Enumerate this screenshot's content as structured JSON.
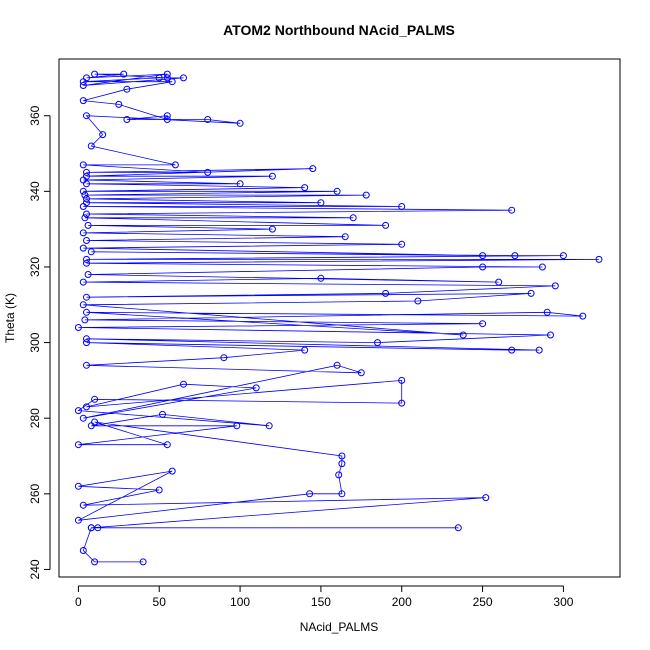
{
  "chart_data": {
    "type": "line",
    "title": "ATOM2 Northbound NAcid_PALMS",
    "xlabel": "NAcid_PALMS",
    "ylabel": "Theta (K)",
    "xlim": [
      -12,
      335
    ],
    "ylim": [
      238,
      375
    ],
    "xticks": [
      0,
      50,
      100,
      150,
      200,
      250,
      300
    ],
    "yticks": [
      240,
      260,
      280,
      300,
      320,
      340,
      360
    ],
    "grid": false,
    "legend": "none",
    "series_color": "#0000ff",
    "marker": "open-circle",
    "series": [
      {
        "values": [
          [
            40,
            242
          ],
          [
            10,
            242
          ],
          [
            3,
            245
          ],
          [
            8,
            251
          ],
          [
            12,
            251
          ],
          [
            235,
            251
          ],
          [
            8,
            251
          ],
          [
            252,
            259
          ],
          [
            3,
            257
          ],
          [
            50,
            261
          ],
          [
            0,
            262
          ],
          [
            58,
            266
          ],
          [
            0,
            253
          ],
          [
            143,
            260
          ],
          [
            163,
            260
          ],
          [
            161,
            265
          ],
          [
            163,
            268
          ],
          [
            163,
            270
          ],
          [
            10,
            279
          ],
          [
            55,
            273
          ],
          [
            0,
            273
          ],
          [
            98,
            278
          ],
          [
            8,
            278
          ],
          [
            52,
            281
          ],
          [
            118,
            278
          ],
          [
            0,
            282
          ],
          [
            10,
            285
          ],
          [
            200,
            284
          ],
          [
            200,
            290
          ],
          [
            5,
            283
          ],
          [
            65,
            289
          ],
          [
            110,
            288
          ],
          [
            3,
            280
          ],
          [
            160,
            294
          ],
          [
            175,
            292
          ],
          [
            5,
            294
          ],
          [
            90,
            296
          ],
          [
            140,
            298
          ],
          [
            5,
            300
          ],
          [
            268,
            298
          ],
          [
            285,
            298
          ],
          [
            5,
            301
          ],
          [
            185,
            300
          ],
          [
            292,
            302
          ],
          [
            0,
            304
          ],
          [
            250,
            305
          ],
          [
            4,
            306
          ],
          [
            290,
            308
          ],
          [
            312,
            307
          ],
          [
            5,
            308
          ],
          [
            238,
            302
          ],
          [
            3,
            310
          ],
          [
            210,
            311
          ],
          [
            280,
            313
          ],
          [
            5,
            312
          ],
          [
            190,
            313
          ],
          [
            295,
            315
          ],
          [
            3,
            316
          ],
          [
            150,
            317
          ],
          [
            260,
            316
          ],
          [
            6,
            318
          ],
          [
            250,
            320
          ],
          [
            287,
            320
          ],
          [
            5,
            321
          ],
          [
            322,
            322
          ],
          [
            5,
            322
          ],
          [
            300,
            323
          ],
          [
            270,
            323
          ],
          [
            8,
            324
          ],
          [
            250,
            323
          ],
          [
            3,
            325
          ],
          [
            200,
            326
          ],
          [
            5,
            327
          ],
          [
            165,
            328
          ],
          [
            3,
            329
          ],
          [
            120,
            330
          ],
          [
            6,
            331
          ],
          [
            190,
            331
          ],
          [
            4,
            333
          ],
          [
            170,
            333
          ],
          [
            5,
            334
          ],
          [
            268,
            335
          ],
          [
            3,
            336
          ],
          [
            200,
            336
          ],
          [
            5,
            337
          ],
          [
            150,
            337
          ],
          [
            5,
            338
          ],
          [
            178,
            339
          ],
          [
            4,
            339
          ],
          [
            160,
            340
          ],
          [
            3,
            340
          ],
          [
            140,
            341
          ],
          [
            5,
            342
          ],
          [
            100,
            342
          ],
          [
            3,
            343
          ],
          [
            120,
            344
          ],
          [
            5,
            344
          ],
          [
            145,
            346
          ],
          [
            5,
            345
          ],
          [
            80,
            345
          ],
          [
            3,
            347
          ],
          [
            60,
            347
          ],
          [
            8,
            352
          ],
          [
            15,
            355
          ],
          [
            5,
            360
          ],
          [
            100,
            358
          ],
          [
            80,
            359
          ],
          [
            30,
            359
          ],
          [
            55,
            360
          ],
          [
            55,
            359
          ],
          [
            25,
            363
          ],
          [
            3,
            364
          ],
          [
            30,
            367
          ],
          [
            58,
            369
          ],
          [
            3,
            369
          ],
          [
            50,
            370
          ],
          [
            65,
            370
          ],
          [
            3,
            368
          ],
          [
            55,
            371
          ],
          [
            5,
            370
          ],
          [
            28,
            371
          ],
          [
            10,
            371
          ],
          [
            55,
            370
          ]
        ]
      }
    ]
  }
}
